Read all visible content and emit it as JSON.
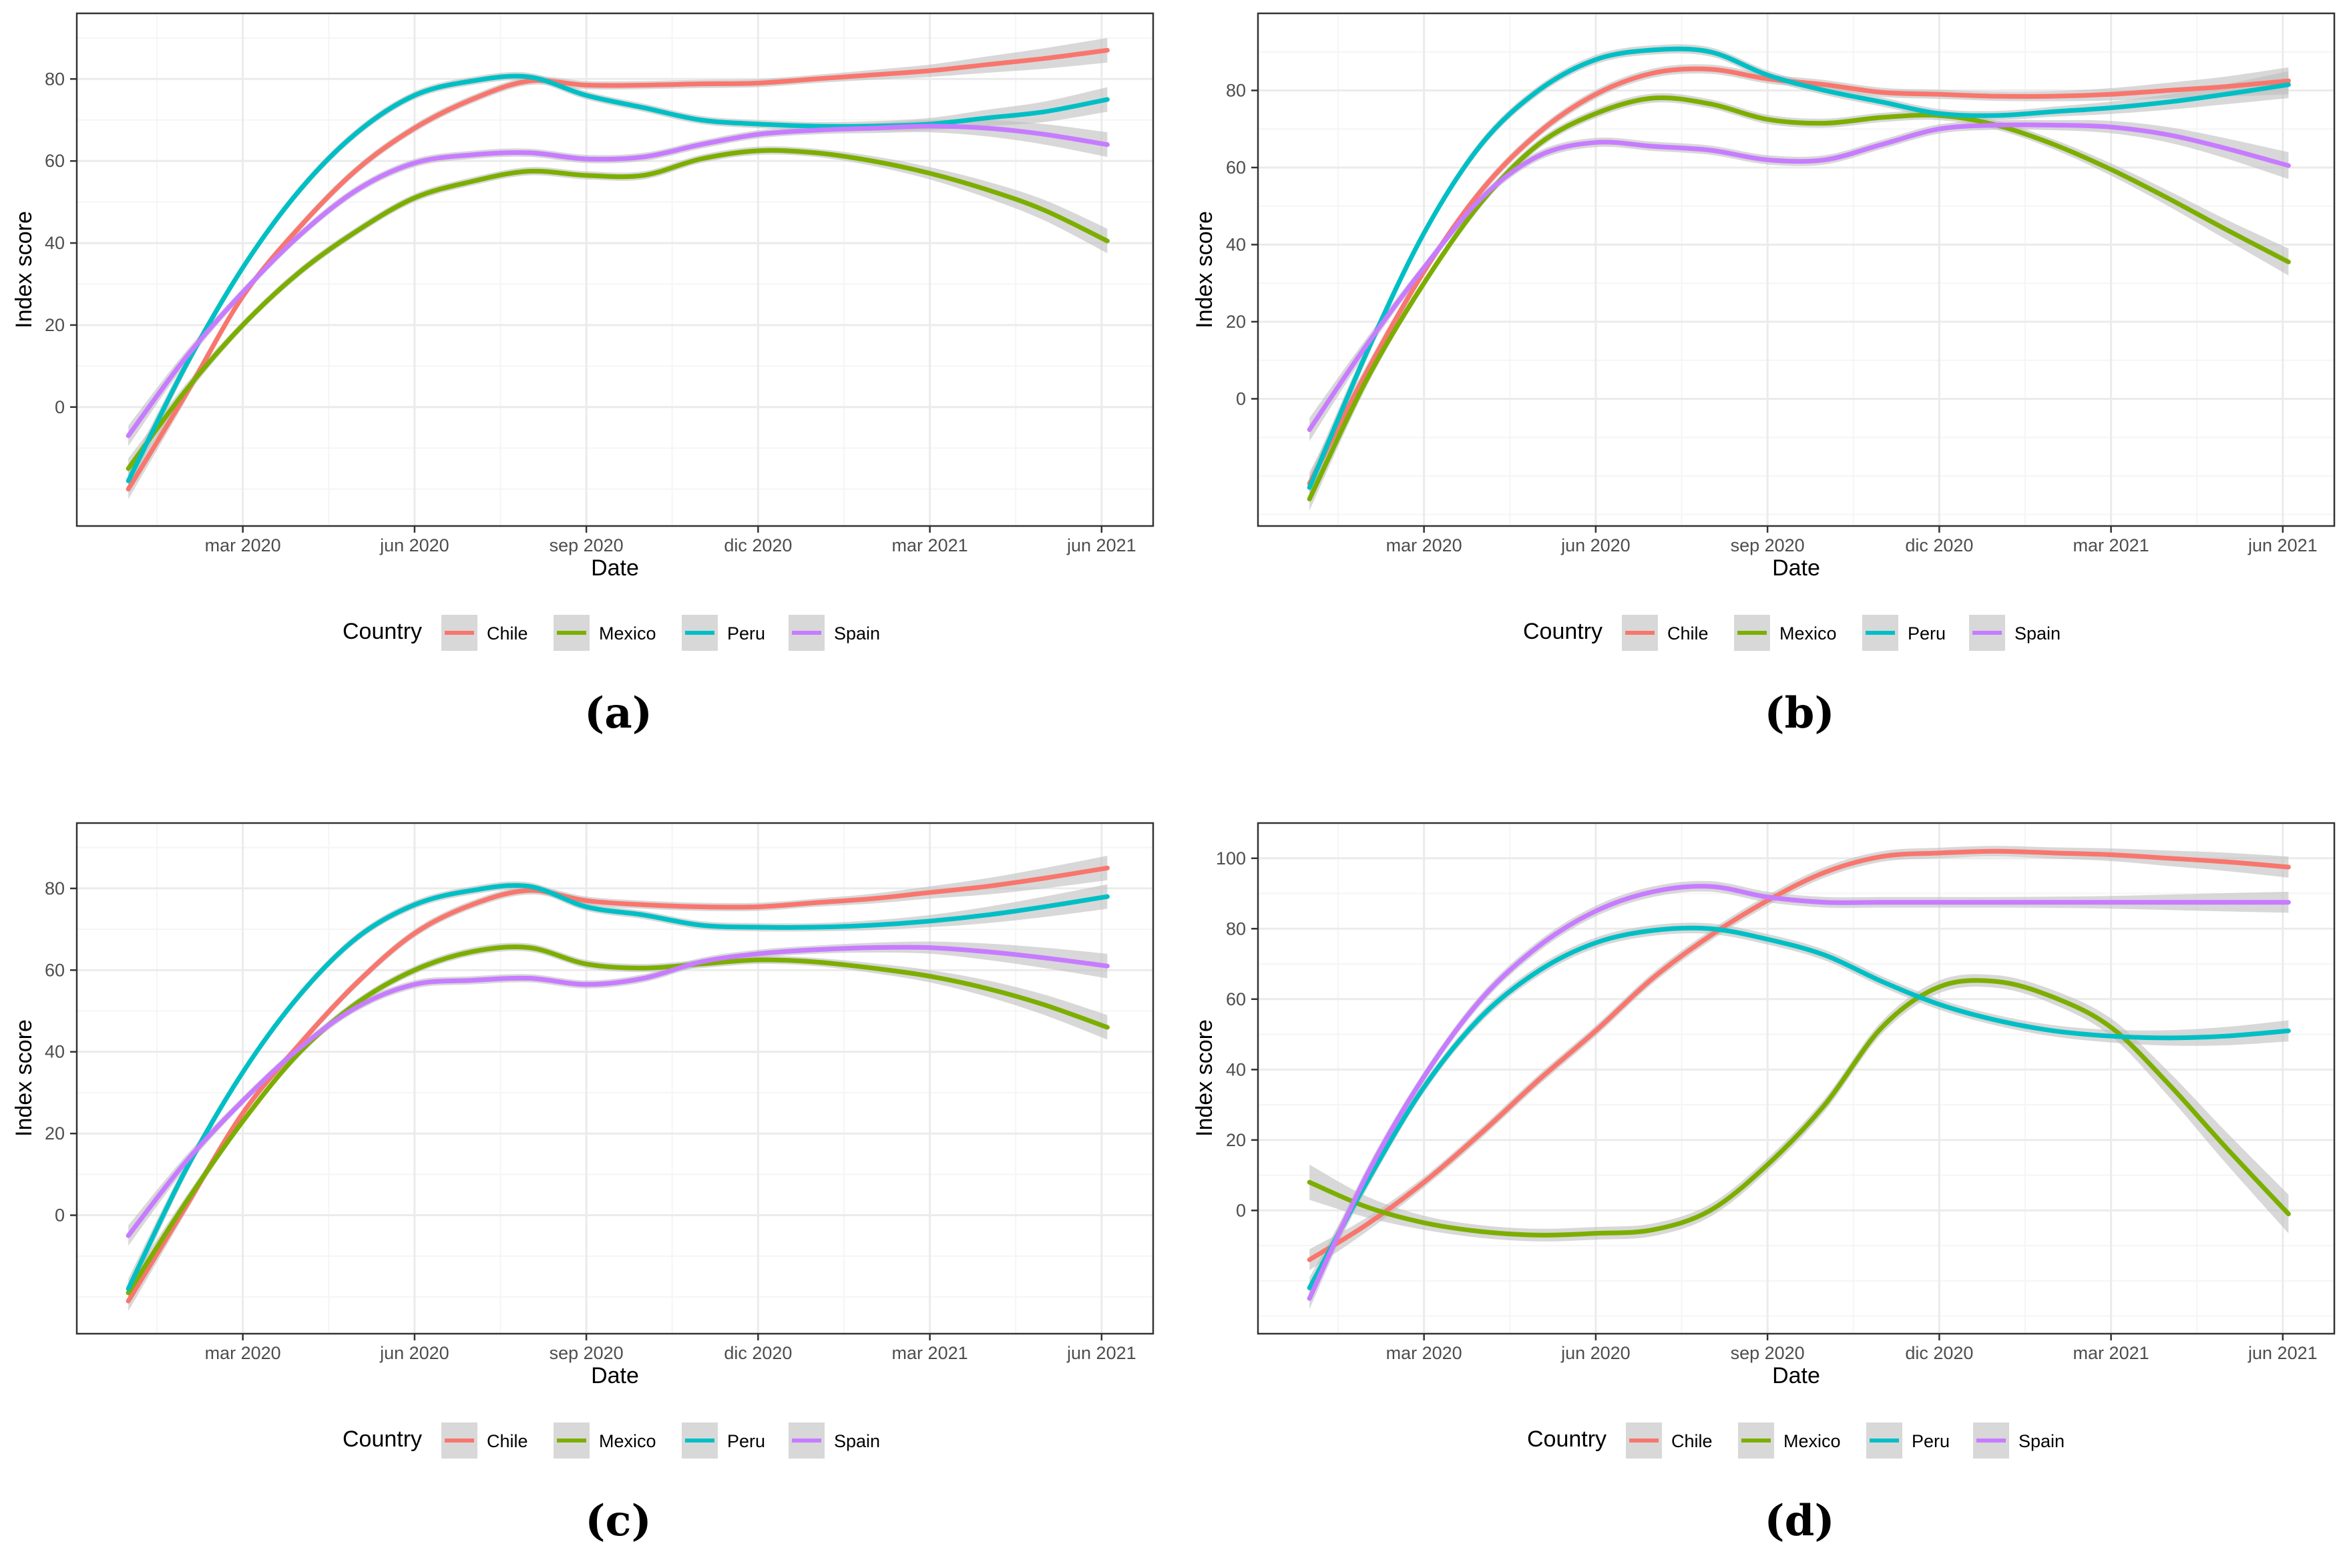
{
  "figure": {
    "panel_captions": [
      "(a)",
      "(b)",
      "(c)",
      "(d)"
    ]
  },
  "legend": {
    "title": "Country",
    "items": [
      {
        "name": "Chile",
        "color": "#F8766D"
      },
      {
        "name": "Mexico",
        "color": "#7CAE00"
      },
      {
        "name": "Peru",
        "color": "#00BFC4"
      },
      {
        "name": "Spain",
        "color": "#C77CFF"
      }
    ]
  },
  "colors": {
    "Chile": "#F8766D",
    "Mexico": "#7CAE00",
    "Peru": "#00BFC4",
    "Spain": "#C77CFF",
    "ribbon": "#BEBEBE",
    "grid_major": "#EBEBEB",
    "grid_minor": "#F5F5F5",
    "panel_border": "#333333"
  },
  "chart_data": [
    {
      "type": "line",
      "caption": "(a)",
      "xlabel": "Date",
      "ylabel": "Index score",
      "x_tick_labels": [
        "mar 2020",
        "jun 2020",
        "sep 2020",
        "dic 2020",
        "mar 2021",
        "jun 2021"
      ],
      "x_tick_values": [
        2,
        5,
        8,
        11,
        14,
        17
      ],
      "xlim": [
        -0.9,
        17.9
      ],
      "y_ticks": [
        0,
        20,
        40,
        60,
        80
      ],
      "ylim": [
        -29,
        96
      ],
      "series": [
        {
          "name": "Chile",
          "x": [
            0,
            1,
            2,
            3,
            4,
            5,
            6,
            7,
            8,
            9,
            10,
            11,
            12,
            13,
            14,
            15,
            16,
            17.1
          ],
          "values": [
            -20,
            3,
            27,
            44,
            58,
            68,
            75,
            79.5,
            78.5,
            78.5,
            78.8,
            79,
            80,
            81,
            82,
            83.5,
            85,
            87
          ],
          "band": [
            2.5,
            1.5,
            1,
            1,
            1,
            1,
            1,
            1,
            1,
            1,
            1,
            1,
            1,
            1.2,
            1.5,
            2,
            2.5,
            3
          ]
        },
        {
          "name": "Mexico",
          "x": [
            0,
            1,
            2,
            3,
            4,
            5,
            6,
            7,
            8,
            9,
            10,
            11,
            12,
            13,
            14,
            15,
            16,
            17.1
          ],
          "values": [
            -15,
            4,
            20,
            33,
            43,
            51,
            55,
            57.5,
            56.5,
            56.5,
            60.5,
            62.5,
            62,
            60,
            57,
            53,
            48,
            40.5
          ],
          "band": [
            2.5,
            1.5,
            1,
            1,
            1,
            1,
            1,
            1,
            1,
            1,
            1,
            1,
            1,
            1.2,
            1.5,
            2,
            2.5,
            3
          ]
        },
        {
          "name": "Peru",
          "x": [
            0,
            1,
            2,
            3,
            4,
            5,
            6,
            7,
            8,
            9,
            10,
            11,
            12,
            13,
            14,
            15,
            16,
            17.1
          ],
          "values": [
            -18,
            10,
            34,
            53,
            67,
            76,
            79.5,
            80.5,
            76,
            73,
            70,
            69,
            68.5,
            68.5,
            69,
            70.5,
            72,
            75
          ],
          "band": [
            2.5,
            1.5,
            1,
            1,
            1,
            1,
            1,
            1,
            1,
            1,
            1,
            1,
            1,
            1.2,
            1.5,
            2,
            2.5,
            3
          ]
        },
        {
          "name": "Spain",
          "x": [
            0,
            1,
            2,
            3,
            4,
            5,
            6,
            7,
            8,
            9,
            10,
            11,
            12,
            13,
            14,
            15,
            16,
            17.1
          ],
          "values": [
            -7,
            12,
            28,
            42,
            53,
            59.5,
            61.5,
            62,
            60.5,
            61,
            64,
            66.5,
            67.5,
            68,
            68.5,
            68,
            66.5,
            64
          ],
          "band": [
            2.5,
            1.5,
            1,
            1,
            1,
            1,
            1,
            1,
            1,
            1,
            1,
            1,
            1,
            1.2,
            1.5,
            2,
            2.5,
            3
          ]
        }
      ]
    },
    {
      "type": "line",
      "caption": "(b)",
      "xlabel": "Date",
      "ylabel": "Index score",
      "x_tick_labels": [
        "mar 2020",
        "jun 2020",
        "sep 2020",
        "dic 2020",
        "mar 2021",
        "jun 2021"
      ],
      "x_tick_values": [
        2,
        5,
        8,
        11,
        14,
        17
      ],
      "xlim": [
        -0.9,
        17.9
      ],
      "y_ticks": [
        0,
        20,
        40,
        60,
        80
      ],
      "ylim": [
        -33,
        100
      ],
      "series": [
        {
          "name": "Chile",
          "x": [
            0,
            1,
            2,
            3,
            4,
            5,
            6,
            7,
            8,
            9,
            10,
            11,
            12,
            13,
            14,
            15,
            16,
            17.1
          ],
          "values": [
            -22,
            7,
            33,
            54,
            69,
            79,
            84.5,
            85.5,
            83,
            81.5,
            79.5,
            79,
            78.5,
            78.5,
            79,
            80,
            81,
            82.5
          ],
          "band": [
            3,
            1.8,
            1.2,
            1.2,
            1.2,
            1.2,
            1.2,
            1.2,
            1.2,
            1.2,
            1.2,
            1.2,
            1.2,
            1.3,
            1.6,
            2,
            2.6,
            3.5
          ]
        },
        {
          "name": "Mexico",
          "x": [
            0,
            1,
            2,
            3,
            4,
            5,
            6,
            7,
            8,
            9,
            10,
            11,
            12,
            13,
            14,
            15,
            16,
            17.1
          ],
          "values": [
            -26,
            5,
            30,
            51,
            66,
            74,
            78,
            76.5,
            72.5,
            71.5,
            73,
            73.5,
            71,
            66,
            59.5,
            52,
            44,
            35.5
          ],
          "band": [
            3,
            1.8,
            1.2,
            1.2,
            1.2,
            1.2,
            1.2,
            1.2,
            1.2,
            1.2,
            1.2,
            1.2,
            1.2,
            1.3,
            1.6,
            2,
            2.6,
            3.5
          ]
        },
        {
          "name": "Peru",
          "x": [
            0,
            1,
            2,
            3,
            4,
            5,
            6,
            7,
            8,
            9,
            10,
            11,
            12,
            13,
            14,
            15,
            16,
            17.1
          ],
          "values": [
            -23,
            12,
            43,
            66,
            80,
            88,
            90.5,
            90,
            84,
            80,
            77,
            74,
            73.5,
            74.5,
            75.5,
            77,
            79,
            81.5
          ],
          "band": [
            3,
            1.8,
            1.2,
            1.2,
            1.2,
            1.2,
            1.2,
            1.2,
            1.2,
            1.2,
            1.2,
            1.2,
            1.2,
            1.3,
            1.6,
            2,
            2.6,
            3.5
          ]
        },
        {
          "name": "Spain",
          "x": [
            0,
            1,
            2,
            3,
            4,
            5,
            6,
            7,
            8,
            9,
            10,
            11,
            12,
            13,
            14,
            15,
            16,
            17.1
          ],
          "values": [
            -8,
            14,
            34,
            52,
            63,
            66.5,
            65.5,
            64.5,
            62,
            62,
            66,
            70,
            71,
            71,
            70.5,
            68.5,
            65,
            60.5
          ],
          "band": [
            3,
            1.8,
            1.2,
            1.2,
            1.2,
            1.2,
            1.2,
            1.2,
            1.2,
            1.2,
            1.2,
            1.2,
            1.2,
            1.3,
            1.6,
            2,
            2.6,
            3.5
          ]
        }
      ]
    },
    {
      "type": "line",
      "caption": "(c)",
      "xlabel": "Date",
      "ylabel": "Index score",
      "x_tick_labels": [
        "mar 2020",
        "jun 2020",
        "sep 2020",
        "dic 2020",
        "mar 2021",
        "jun 2021"
      ],
      "x_tick_values": [
        2,
        5,
        8,
        11,
        14,
        17
      ],
      "xlim": [
        -0.9,
        17.9
      ],
      "y_ticks": [
        0,
        20,
        40,
        60,
        80
      ],
      "ylim": [
        -29,
        96
      ],
      "series": [
        {
          "name": "Chile",
          "x": [
            0,
            1,
            2,
            3,
            4,
            5,
            6,
            7,
            8,
            9,
            10,
            11,
            12,
            13,
            14,
            15,
            16,
            17.1
          ],
          "values": [
            -21,
            2,
            25,
            42,
            57,
            69,
            76,
            79.5,
            77,
            76,
            75.5,
            75.5,
            76.5,
            77.5,
            79,
            80.5,
            82.5,
            85
          ],
          "band": [
            2.5,
            1.5,
            1,
            1,
            1,
            1,
            1,
            1,
            1,
            1,
            1,
            1,
            1,
            1.2,
            1.5,
            2,
            2.5,
            3
          ]
        },
        {
          "name": "Mexico",
          "x": [
            0,
            1,
            2,
            3,
            4,
            5,
            6,
            7,
            8,
            9,
            10,
            11,
            12,
            13,
            14,
            15,
            16,
            17.1
          ],
          "values": [
            -19,
            3,
            23,
            40,
            52,
            60,
            64.5,
            65.5,
            61.5,
            60.5,
            61.5,
            62.5,
            62,
            60.5,
            58.5,
            55.5,
            51.5,
            46
          ],
          "band": [
            2.5,
            1.5,
            1,
            1,
            1,
            1,
            1,
            1,
            1,
            1,
            1,
            1,
            1,
            1.2,
            1.5,
            2,
            2.5,
            3
          ]
        },
        {
          "name": "Peru",
          "x": [
            0,
            1,
            2,
            3,
            4,
            5,
            6,
            7,
            8,
            9,
            10,
            11,
            12,
            13,
            14,
            15,
            16,
            17.1
          ],
          "values": [
            -18,
            11,
            35,
            54,
            68,
            76,
            79.5,
            80.5,
            75.5,
            73.5,
            71,
            70.5,
            70.5,
            71,
            72,
            73.5,
            75.5,
            78
          ],
          "band": [
            2.5,
            1.5,
            1,
            1,
            1,
            1,
            1,
            1,
            1,
            1,
            1,
            1,
            1,
            1.2,
            1.5,
            2,
            2.5,
            3
          ]
        },
        {
          "name": "Spain",
          "x": [
            0,
            1,
            2,
            3,
            4,
            5,
            6,
            7,
            8,
            9,
            10,
            11,
            12,
            13,
            14,
            15,
            16,
            17.1
          ],
          "values": [
            -5,
            13,
            28,
            41,
            51,
            56.5,
            57.5,
            58,
            56.5,
            58,
            62,
            64,
            65,
            65.5,
            65.5,
            64.5,
            63,
            61
          ],
          "band": [
            2.5,
            1.5,
            1,
            1,
            1,
            1,
            1,
            1,
            1,
            1,
            1,
            1,
            1,
            1.2,
            1.5,
            2,
            2.5,
            3
          ]
        }
      ]
    },
    {
      "type": "line",
      "caption": "(d)",
      "xlabel": "Date",
      "ylabel": "Index score",
      "x_tick_labels": [
        "mar 2020",
        "jun 2020",
        "sep 2020",
        "dic 2020",
        "mar 2021",
        "jun 2021"
      ],
      "x_tick_values": [
        2,
        5,
        8,
        11,
        14,
        17
      ],
      "xlim": [
        -0.9,
        17.9
      ],
      "y_ticks": [
        0,
        20,
        40,
        60,
        80,
        100
      ],
      "ylim": [
        -35,
        110
      ],
      "series": [
        {
          "name": "Chile",
          "x": [
            0,
            1,
            2,
            3,
            4,
            5,
            6,
            7,
            8,
            9,
            10,
            11,
            12,
            13,
            14,
            15,
            16,
            17.1
          ],
          "values": [
            -14,
            -4,
            8,
            22,
            37,
            51,
            66,
            78,
            88,
            96,
            100.5,
            101.5,
            102,
            101.5,
            101,
            100,
            99,
            97.5
          ],
          "band": [
            3,
            2,
            1.5,
            1.5,
            1.5,
            1.5,
            1.5,
            1.5,
            1.5,
            1.5,
            1.5,
            1.5,
            1.5,
            1.6,
            1.8,
            2.2,
            2.6,
            3
          ]
        },
        {
          "name": "Mexico",
          "x": [
            0,
            1,
            2,
            3,
            4,
            5,
            6,
            7,
            8,
            9,
            10,
            11,
            12,
            13,
            14,
            15,
            16,
            17.1
          ],
          "values": [
            8,
            1,
            -3.5,
            -6,
            -7,
            -6.5,
            -5.5,
            0,
            13,
            30,
            52,
            63.5,
            65,
            60.5,
            52,
            36,
            18,
            -1
          ],
          "band": [
            5,
            3,
            2,
            1.8,
            1.8,
            1.8,
            1.8,
            1.8,
            1.8,
            1.8,
            1.8,
            1.8,
            1.8,
            2,
            2.5,
            3.5,
            4.5,
            5.5
          ]
        },
        {
          "name": "Peru",
          "x": [
            0,
            1,
            2,
            3,
            4,
            5,
            6,
            7,
            8,
            9,
            10,
            11,
            12,
            13,
            14,
            15,
            16,
            17.1
          ],
          "values": [
            -22,
            8,
            35,
            55,
            68,
            76,
            79.5,
            80,
            77,
            72.5,
            65,
            58.5,
            54,
            51,
            49.5,
            49,
            49.5,
            51
          ],
          "band": [
            3,
            2,
            1.5,
            1.5,
            1.5,
            1.5,
            1.5,
            1.5,
            1.5,
            1.5,
            1.5,
            1.5,
            1.5,
            1.6,
            1.8,
            2.2,
            2.6,
            3
          ]
        },
        {
          "name": "Spain",
          "x": [
            0,
            1,
            2,
            3,
            4,
            5,
            6,
            7,
            8,
            9,
            10,
            11,
            12,
            13,
            14,
            15,
            16,
            17.1
          ],
          "values": [
            -25,
            10,
            38,
            60,
            75,
            85,
            90.5,
            92,
            89,
            87.5,
            87.5,
            87.5,
            87.5,
            87.5,
            87.5,
            87.5,
            87.5,
            87.5
          ],
          "band": [
            3,
            2,
            1.5,
            1.5,
            1.5,
            1.5,
            1.5,
            1.5,
            1.5,
            1.5,
            1.5,
            1.5,
            1.5,
            1.6,
            1.8,
            2.2,
            2.6,
            3
          ]
        }
      ]
    }
  ]
}
